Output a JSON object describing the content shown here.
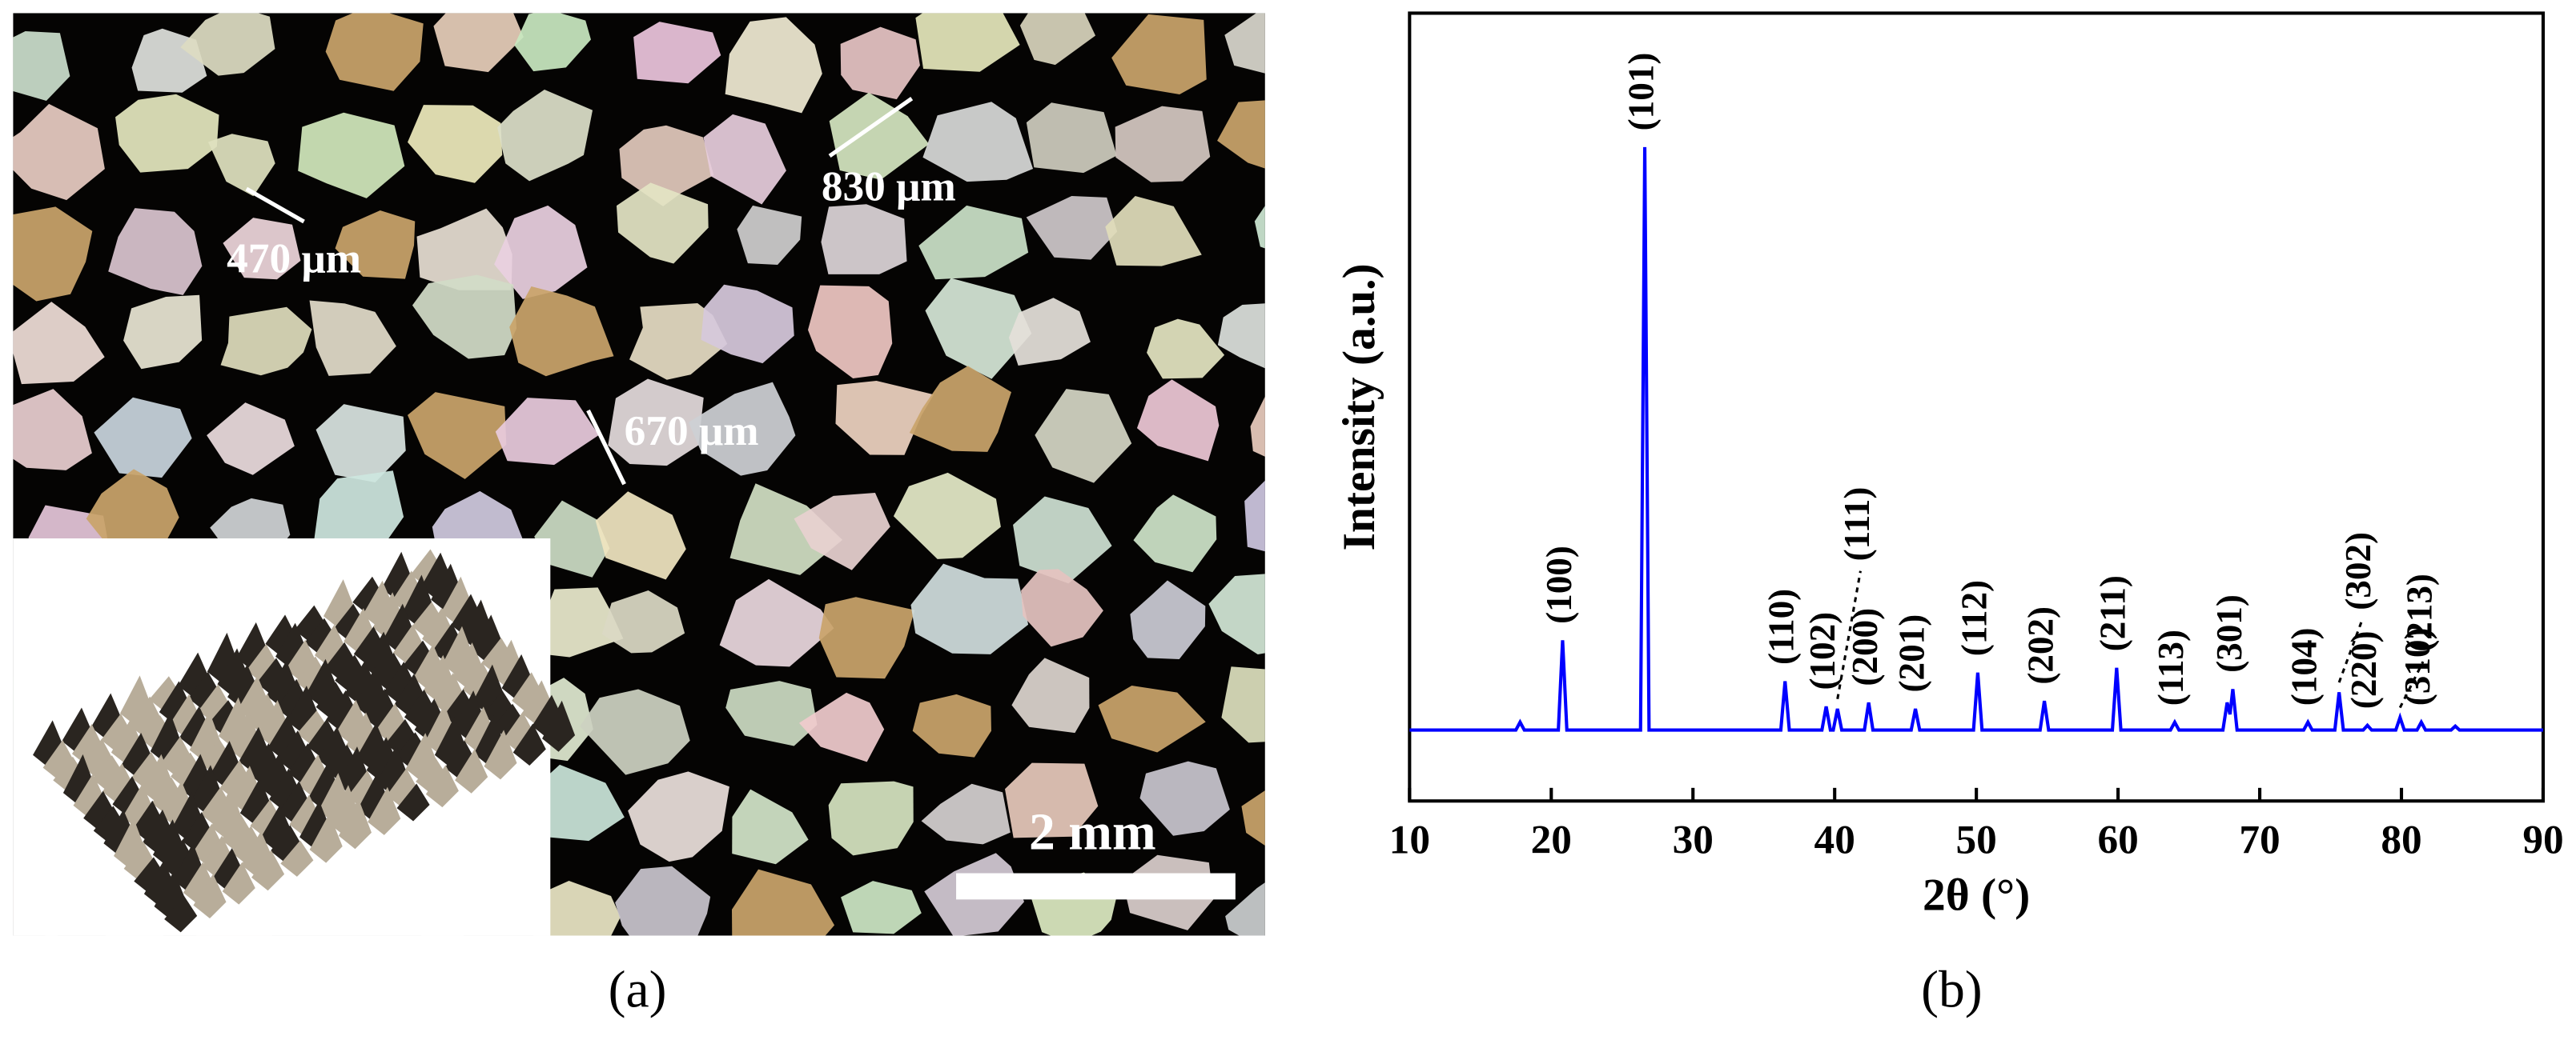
{
  "panel_a": {
    "annotations": [
      "470 μm",
      "830 μm",
      "670 μm"
    ],
    "scale_bar": "2 mm",
    "caption": "(a)"
  },
  "panel_b": {
    "caption": "(b)"
  },
  "chart_data": {
    "type": "line",
    "x_label": "2θ (°)",
    "y_label": "Intensity (a.u.)",
    "xlim": [
      10,
      90
    ],
    "xticks": [
      10,
      20,
      30,
      40,
      50,
      60,
      70,
      80,
      90
    ],
    "ylim": [
      0,
      100
    ],
    "series": [
      {
        "color": "#0000ff",
        "x": [
          10,
          17.5,
          17.8,
          18.1,
          20.5,
          20.8,
          21.1,
          26.3,
          26.6,
          26.9,
          36.2,
          36.5,
          36.8,
          39.1,
          39.4,
          39.7,
          39.9,
          40.2,
          40.5,
          42.1,
          42.4,
          42.7,
          45.4,
          45.7,
          46.0,
          49.8,
          50.1,
          50.4,
          54.5,
          54.8,
          55.1,
          59.6,
          59.9,
          60.2,
          63.7,
          64.0,
          64.3,
          67.4,
          67.7,
          67.9,
          68.1,
          68.4,
          73.1,
          73.4,
          73.7,
          75.3,
          75.6,
          75.9,
          77.3,
          77.6,
          77.9,
          79.6,
          79.9,
          80.2,
          81.1,
          81.4,
          81.7,
          83.5,
          83.8,
          84.1,
          90
        ],
        "values": [
          9,
          9,
          10,
          9,
          9,
          20.4,
          9,
          9,
          83,
          9,
          9,
          15.2,
          9,
          9,
          12,
          9,
          9,
          11.7,
          9,
          9,
          12.5,
          9,
          9,
          11.7,
          9,
          9,
          16.3,
          9,
          9,
          12.7,
          9,
          9,
          16.9,
          9,
          9,
          10,
          9,
          9,
          12.5,
          11,
          14.2,
          9,
          9,
          10,
          9,
          9,
          13.8,
          9,
          9,
          9.6,
          9,
          9,
          10.6,
          9,
          9,
          10,
          9,
          9,
          9.5,
          9,
          9
        ]
      }
    ],
    "peak_labels": [
      {
        "label": "(100)",
        "x": 20.8
      },
      {
        "label": "(101)",
        "x": 26.6
      },
      {
        "label": "(110)",
        "x": 36.5
      },
      {
        "label": "(102)",
        "x": 39.4
      },
      {
        "label": "(111)",
        "x": 40.2
      },
      {
        "label": "(200)",
        "x": 42.4
      },
      {
        "label": "(201)",
        "x": 45.7
      },
      {
        "label": "(112)",
        "x": 50.1
      },
      {
        "label": "(202)",
        "x": 54.8
      },
      {
        "label": "(211)",
        "x": 59.9
      },
      {
        "label": "(113)",
        "x": 64.0
      },
      {
        "label": "(301)",
        "x": 68.1
      },
      {
        "label": "(104)",
        "x": 73.4
      },
      {
        "label": "(302)",
        "x": 75.6
      },
      {
        "label": "(220)",
        "x": 77.6
      },
      {
        "label": "(213)",
        "x": 79.9
      },
      {
        "label": "(310)",
        "x": 81.4
      }
    ]
  }
}
